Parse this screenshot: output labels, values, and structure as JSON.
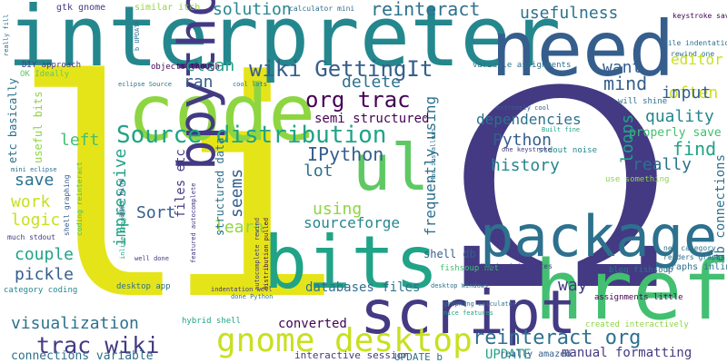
{
  "word_cloud": {
    "background_color": "#ffffff",
    "palette": {
      "dark_purple": "#440154",
      "indigo": "#433a83",
      "blue": "#355e8d",
      "steel_blue": "#2d718e",
      "teal": "#24878e",
      "green_teal": "#20a386",
      "green": "#43bf71",
      "light_green": "#5ec962",
      "lime": "#8ed542",
      "yellow_green": "#c8e020",
      "yellow": "#e5e419"
    },
    "words": [
      {
        "text": "li",
        "color": "#e5e419"
      },
      {
        "text": "Ω",
        "color": "#433a83"
      },
      {
        "text": "interpreter",
        "color": "#24878e"
      },
      {
        "text": "need",
        "color": "#355e8d"
      },
      {
        "text": "code",
        "color": "#8ed542"
      },
      {
        "text": "bits",
        "color": "#20a386"
      },
      {
        "text": "package",
        "color": "#2d718e"
      },
      {
        "text": "href",
        "color": "#43bf71"
      },
      {
        "text": "bpython",
        "color": "#433a83"
      },
      {
        "text": "script",
        "color": "#433a83"
      },
      {
        "text": "ul",
        "color": "#5ec962"
      },
      {
        "text": "gnome desktop",
        "color": "#c8e020"
      },
      {
        "text": "reinteract org",
        "color": "#2d718e"
      },
      {
        "text": "trac wiki",
        "color": "#433a83"
      },
      {
        "text": "Source distribution",
        "color": "#20a386"
      },
      {
        "text": "wiki GettingIt",
        "color": "#355e8d"
      },
      {
        "text": "org trac",
        "color": "#440154"
      },
      {
        "text": "reinteract",
        "color": "#2d718e"
      },
      {
        "text": "solution",
        "color": "#24878e"
      },
      {
        "text": "usefulness",
        "color": "#2d718e"
      },
      {
        "text": "editor",
        "color": "#c8e020"
      },
      {
        "text": "want",
        "color": "#355e8d"
      },
      {
        "text": "often",
        "color": "#c8e020"
      },
      {
        "text": "mind",
        "color": "#355e8d"
      },
      {
        "text": "input",
        "color": "#355e8d"
      },
      {
        "text": "quality",
        "color": "#24878e"
      },
      {
        "text": "properly save",
        "color": "#43bf71"
      },
      {
        "text": "find",
        "color": "#20a386"
      },
      {
        "text": "really",
        "color": "#2d718e"
      },
      {
        "text": "db connections",
        "color": "#2d718e"
      },
      {
        "text": "Python",
        "color": "#355e8d"
      },
      {
        "text": "history",
        "color": "#24878e"
      },
      {
        "text": "dependencies",
        "color": "#2d718e"
      },
      {
        "text": "IPython",
        "color": "#355e8d"
      },
      {
        "text": "loops",
        "color": "#20a386"
      },
      {
        "text": "frequently using",
        "color": "#2d718e"
      },
      {
        "text": "clean",
        "color": "#20a386"
      },
      {
        "text": "ran",
        "color": "#355e8d"
      },
      {
        "text": "delete",
        "color": "#2d718e"
      },
      {
        "text": "semi structured",
        "color": "#440154"
      },
      {
        "text": "left",
        "color": "#43bf71"
      },
      {
        "text": "save",
        "color": "#2d718e"
      },
      {
        "text": "work",
        "color": "#c8e020"
      },
      {
        "text": "logic",
        "color": "#c8e020"
      },
      {
        "text": "impressive",
        "color": "#20a386"
      },
      {
        "text": "Sort",
        "color": "#355e8d"
      },
      {
        "text": "seems",
        "color": "#355e8d"
      },
      {
        "text": "lot",
        "color": "#2d718e"
      },
      {
        "text": "using",
        "color": "#8ed542"
      },
      {
        "text": "sourceforge",
        "color": "#24878e"
      },
      {
        "text": "learn",
        "color": "#8ed542"
      },
      {
        "text": "couple",
        "color": "#20a386"
      },
      {
        "text": "pickle",
        "color": "#355e8d"
      },
      {
        "text": "visualization",
        "color": "#2d718e"
      },
      {
        "text": "databases files",
        "color": "#2d718e"
      },
      {
        "text": "converted",
        "color": "#440154"
      },
      {
        "text": "way",
        "color": "#433a83"
      },
      {
        "text": "manual formatting",
        "color": "#433a83"
      },
      {
        "text": "UPDATE",
        "color": "#20a386"
      },
      {
        "text": "really amazed",
        "color": "#355e8d"
      },
      {
        "text": "shell db",
        "color": "#355e8d"
      },
      {
        "text": "etc basically",
        "color": "#2d718e"
      },
      {
        "text": "useful bits",
        "color": "#8ed542"
      },
      {
        "text": "structured data",
        "color": "#2d718e"
      },
      {
        "text": "files etc",
        "color": "#433a83"
      },
      {
        "text": "connections variable",
        "color": "#2d718e"
      },
      {
        "text": "interactive session",
        "color": "#433a83"
      },
      {
        "text": "UPDATE b",
        "color": "#2d718e"
      },
      {
        "text": "gtk gnome",
        "color": "#433a83"
      },
      {
        "text": "similar itch",
        "color": "#8ed542"
      },
      {
        "text": "calculator mini",
        "color": "#2d718e"
      },
      {
        "text": "keystroke save",
        "color": "#440154"
      },
      {
        "text": "file indentation",
        "color": "#2d718e"
      },
      {
        "text": "rewind one",
        "color": "#2d718e"
      },
      {
        "text": "DIY approach",
        "color": "#433a83"
      },
      {
        "text": "OK Ideally",
        "color": "#5ec962"
      },
      {
        "text": "objects though",
        "color": "#440154"
      },
      {
        "text": "variable assignments",
        "color": "#2d718e"
      },
      {
        "text": "eclipse Source",
        "color": "#2d718e"
      },
      {
        "text": "cool lots",
        "color": "#2d718e"
      },
      {
        "text": "will shine",
        "color": "#2d718e"
      },
      {
        "text": "extremely cool",
        "color": "#355e8d"
      },
      {
        "text": "Built fine",
        "color": "#20a386"
      },
      {
        "text": "stdout noise",
        "color": "#24878e"
      },
      {
        "text": "one keystroke",
        "color": "#433a83"
      },
      {
        "text": "use something",
        "color": "#8ed542"
      },
      {
        "text": "fishsoup net",
        "color": "#43bf71"
      },
      {
        "text": "blog fishsoup",
        "color": "#2d718e"
      },
      {
        "text": "net category",
        "color": "#2d718e"
      },
      {
        "text": "renders graphs",
        "color": "#2d718e"
      },
      {
        "text": "graphs inline",
        "color": "#2d718e"
      },
      {
        "text": "Ubuntu integrates",
        "color": "#433a83"
      },
      {
        "text": "assignments little",
        "color": "#440154"
      },
      {
        "text": "desktop Windows",
        "color": "#2d718e"
      },
      {
        "text": "graphing calculator",
        "color": "#2d718e"
      },
      {
        "text": "nice features",
        "color": "#20a386"
      },
      {
        "text": "Mac installers",
        "color": "#2d718e"
      },
      {
        "text": "created interactively",
        "color": "#8ed542"
      },
      {
        "text": "desktop app",
        "color": "#2d718e"
      },
      {
        "text": "hybrid shell",
        "color": "#20a386"
      },
      {
        "text": "indentation well",
        "color": "#433a83"
      },
      {
        "text": "done Python",
        "color": "#2d718e"
      },
      {
        "text": "well done",
        "color": "#433a83"
      },
      {
        "text": "category coding",
        "color": "#24878e"
      },
      {
        "text": "much stdout",
        "color": "#433a83"
      },
      {
        "text": "mini eclipse",
        "color": "#2d718e"
      },
      {
        "text": "ages kind",
        "color": "#355e8d"
      },
      {
        "text": "inline Imagine",
        "color": "#20a386"
      },
      {
        "text": "b UPDATE",
        "color": "#2d718e"
      },
      {
        "text": "coding reinteract",
        "color": "#43bf71"
      },
      {
        "text": "shell graphing",
        "color": "#355e8d"
      },
      {
        "text": "featured autocomplete",
        "color": "#433a83"
      },
      {
        "text": "autocomplete rewind",
        "color": "#433a83"
      },
      {
        "text": "distribution pulled",
        "color": "#440154"
      },
      {
        "text": "really fill",
        "color": "#2d718e"
      }
    ]
  }
}
